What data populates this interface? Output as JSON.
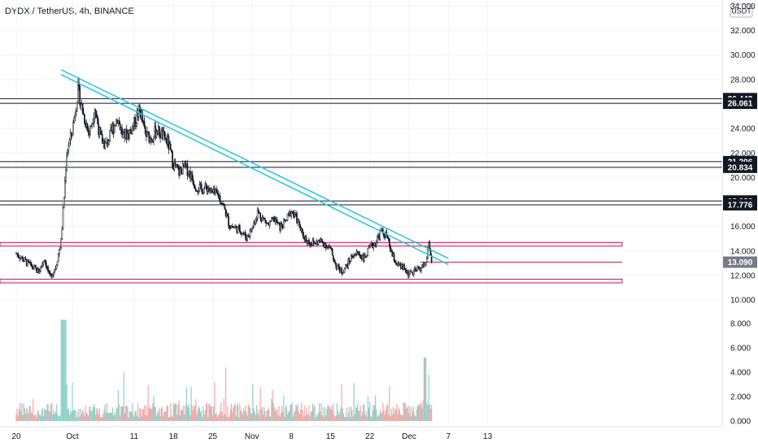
{
  "header": {
    "title": "DYDX / TetherUS, 4h, BINANCE"
  },
  "price_axis": {
    "currency": "USDT"
  },
  "chart_data": {
    "type": "candlestick",
    "symbol": "DYDX / TetherUS",
    "timeframe": "4h",
    "exchange": "BINANCE",
    "price_ticks": [
      "34.000",
      "32.000",
      "30.000",
      "28.000",
      "24.000",
      "22.000",
      "20.000",
      "16.000",
      "14.000",
      "12.000",
      "10.000"
    ],
    "volume_ticks": [
      "8.000",
      "6.000",
      "4.000",
      "2.000",
      "0.000"
    ],
    "x_ticks": [
      "20",
      "Oct",
      "11",
      "18",
      "25",
      "Nov",
      "8",
      "15",
      "22",
      "Dec",
      "7",
      "13"
    ],
    "current_price": "13.090",
    "horizontal_levels": [
      {
        "label": "26.442",
        "value": 26.442
      },
      {
        "label": "26.061",
        "value": 26.061
      },
      {
        "label": "21.296",
        "value": 21.296
      },
      {
        "label": "20.834",
        "value": 20.834
      },
      {
        "label": "18.086",
        "value": 18.086
      },
      {
        "label": "17.776",
        "value": 17.776
      }
    ],
    "support_zones": [
      {
        "from": 14.4,
        "to": 14.7,
        "color": "#c2185b"
      },
      {
        "from": 11.4,
        "to": 11.7,
        "color": "#c2185b"
      }
    ],
    "trendline_channel": {
      "color": "#26c6da",
      "line1": [
        {
          "t": 8.0,
          "price": 28.8
        },
        {
          "t": 77.0,
          "price": 13.4
        }
      ],
      "line2": [
        {
          "t": 8.0,
          "price": 28.4
        },
        {
          "t": 77.0,
          "price": 12.9
        }
      ]
    },
    "colors": {
      "up": "#26a69a",
      "down": "#ef5350",
      "candle": "#131722",
      "level": "#131722"
    },
    "price_path": [
      [
        0,
        13.8
      ],
      [
        2,
        13.0
      ],
      [
        4,
        12.3
      ],
      [
        5,
        13.4
      ],
      [
        6,
        11.8
      ],
      [
        7,
        12.7
      ],
      [
        8,
        14.8
      ],
      [
        9,
        22.1
      ],
      [
        10,
        23.8
      ],
      [
        11,
        27.2
      ],
      [
        12,
        25.1
      ],
      [
        13,
        23.6
      ],
      [
        14,
        25.7
      ],
      [
        15,
        23.2
      ],
      [
        16,
        22.6
      ],
      [
        18,
        24.9
      ],
      [
        19,
        23.4
      ],
      [
        20,
        23.6
      ],
      [
        21,
        24.4
      ],
      [
        22,
        25.6
      ],
      [
        23,
        23.5
      ],
      [
        24,
        23.2
      ],
      [
        25,
        23.9
      ],
      [
        26,
        23.4
      ],
      [
        27,
        22.9
      ],
      [
        28,
        21.1
      ],
      [
        29,
        20.4
      ],
      [
        30,
        20.9
      ],
      [
        31,
        20.3
      ],
      [
        32,
        19.3
      ],
      [
        33,
        19.0
      ],
      [
        34,
        19.2
      ],
      [
        35,
        18.7
      ],
      [
        36,
        18.6
      ],
      [
        37,
        17.6
      ],
      [
        38,
        16.1
      ],
      [
        39,
        15.9
      ],
      [
        40,
        15.7
      ],
      [
        41,
        15.1
      ],
      [
        42,
        15.8
      ],
      [
        43,
        17.2
      ],
      [
        44,
        16.6
      ],
      [
        45,
        16.1
      ],
      [
        46,
        16.6
      ],
      [
        47,
        15.9
      ],
      [
        48,
        16.4
      ],
      [
        49,
        17.3
      ],
      [
        50,
        16.6
      ],
      [
        51,
        15.3
      ],
      [
        52,
        14.8
      ],
      [
        53,
        14.6
      ],
      [
        54,
        14.8
      ],
      [
        55,
        14.6
      ],
      [
        56,
        14.1
      ],
      [
        57,
        12.8
      ],
      [
        58,
        12.3
      ],
      [
        59,
        12.9
      ],
      [
        60,
        13.7
      ],
      [
        61,
        13.8
      ],
      [
        62,
        13.4
      ],
      [
        63,
        14.2
      ],
      [
        64,
        14.7
      ],
      [
        65,
        15.6
      ],
      [
        66,
        15.2
      ],
      [
        67,
        13.6
      ],
      [
        68,
        12.8
      ],
      [
        69,
        12.6
      ],
      [
        70,
        12.1
      ],
      [
        71,
        12.3
      ],
      [
        72,
        12.6
      ],
      [
        73,
        13.0
      ],
      [
        73.5,
        14.7
      ],
      [
        74,
        13.09
      ]
    ]
  }
}
